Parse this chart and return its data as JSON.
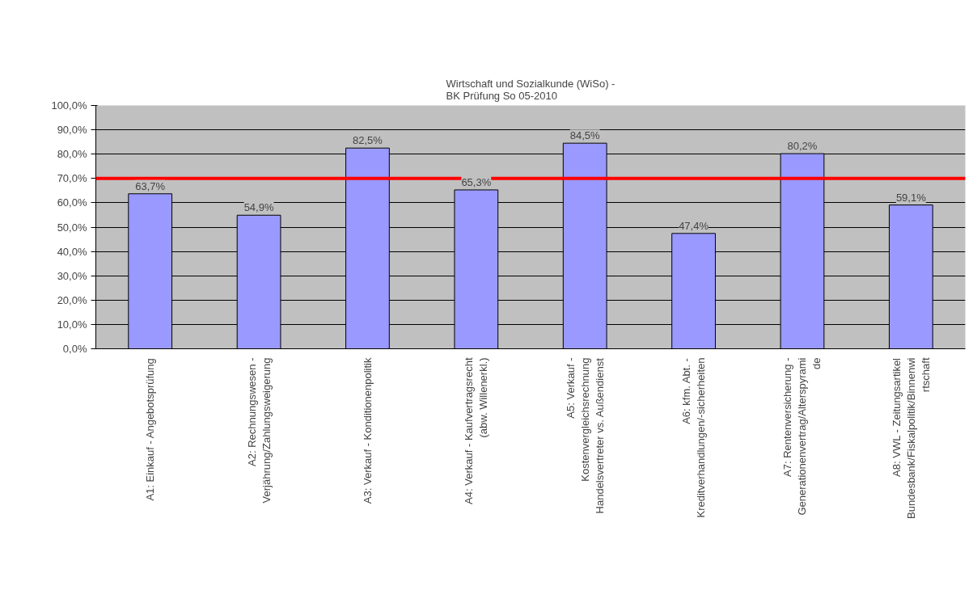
{
  "chart_data": {
    "type": "bar",
    "title": "Wirtschaft und Sozialkunde (WiSo) -\nBK Prüfung So 05-2010",
    "categories": [
      "A1: Einkauf - Angebotsprüfung",
      "A2: Rechnungswesen -\nVerjährung/Zahlungsweigerung",
      "A3: Verkauf - Konditionenpolitik",
      "A4: Verkauf - Kaufvertragsrecht\n(abw. Willenerkl.)",
      "A5: Verkauf -\nKostenvergleichsrechnung\nHandelsvertreter vs. Außendienst",
      "A6: kfm. Abt. -\nKreditverhandlungen/-sicherheiten",
      "A7: Rentenversicherung -\nGenerationenvertrag/Alterspyrami\nde",
      "A8: VWL - Zeitungsartikel\nBundesbank/Fiskalpolitik/Binnenwi\nrtschaft"
    ],
    "values": [
      63.7,
      54.9,
      82.5,
      65.3,
      84.5,
      47.4,
      80.2,
      59.1
    ],
    "value_labels": [
      "63,7%",
      "54,9%",
      "82,5%",
      "65,3%",
      "84,5%",
      "47,4%",
      "80,2%",
      "59,1%"
    ],
    "color": "#9999ff",
    "ylim": [
      0,
      100
    ],
    "yticks": [
      {
        "value": 0,
        "label": "0,0%"
      },
      {
        "value": 10,
        "label": "10,0%"
      },
      {
        "value": 20,
        "label": "20,0%"
      },
      {
        "value": 30,
        "label": "30,0%"
      },
      {
        "value": 40,
        "label": "40,0%"
      },
      {
        "value": 50,
        "label": "50,0%"
      },
      {
        "value": 60,
        "label": "60,0%"
      },
      {
        "value": 70,
        "label": "70,0%"
      },
      {
        "value": 80,
        "label": "80,0%"
      },
      {
        "value": 90,
        "label": "90,0%"
      },
      {
        "value": 100,
        "label": "100,0%"
      }
    ],
    "grid": "y",
    "ref_lines": [
      {
        "axis": "y",
        "value": 70,
        "color": "#ff0000"
      }
    ]
  }
}
